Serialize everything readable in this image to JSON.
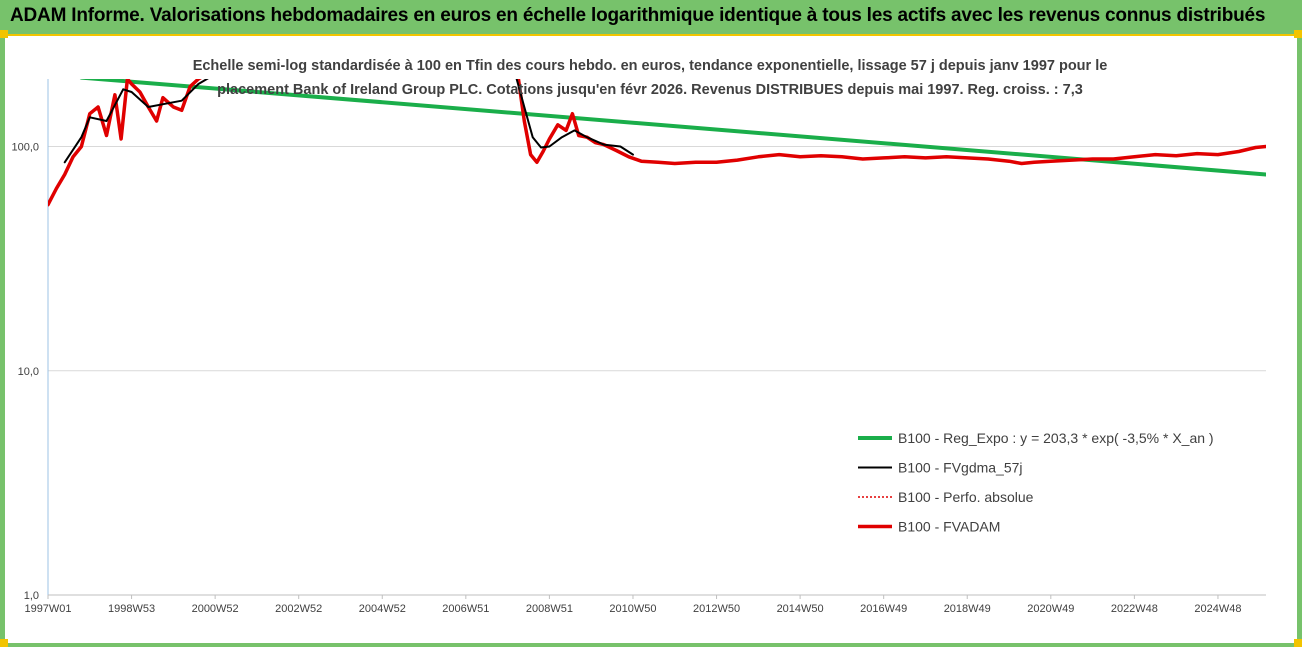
{
  "header": {
    "title": "ADAM Informe. Valorisations hebdomadaires en euros en échelle logarithmique identique à tous les actifs avec les revenus connus distribués"
  },
  "colors": {
    "banner": "#77c26b",
    "accent": "#f2c400",
    "reg_expo": "#1aae4a",
    "fvgdma": "#000000",
    "perfo": "#e00000",
    "fvadam": "#e00000"
  },
  "chart_data": {
    "type": "line",
    "subtitle_lines": [
      "Echelle semi-log standardisée à 100 en Tfin des cours hebdo. en euros, tendance exponentielle, lissage 57 j depuis janv 1997 pour le",
      "placement Bank of Ireland Group PLC. Cotations jusqu'en févr 2026. Revenus DISTRIBUES depuis mai 1997. Reg. croiss. : 7,3"
    ],
    "yscale": "log",
    "ylim": [
      1,
      200
    ],
    "xlim": [
      1997.0,
      2026.15
    ],
    "y_ticks": [
      {
        "value": 1,
        "label": "1,0"
      },
      {
        "value": 10,
        "label": "10,0"
      },
      {
        "value": 100,
        "label": "100,0"
      }
    ],
    "x_ticks": [
      {
        "value": 1997.0,
        "label": "1997W01"
      },
      {
        "value": 1999.0,
        "label": "1998W53"
      },
      {
        "value": 2001.0,
        "label": "2000W52"
      },
      {
        "value": 2003.0,
        "label": "2002W52"
      },
      {
        "value": 2005.0,
        "label": "2004W52"
      },
      {
        "value": 2007.0,
        "label": "2006W51"
      },
      {
        "value": 2009.0,
        "label": "2008W51"
      },
      {
        "value": 2011.0,
        "label": "2010W50"
      },
      {
        "value": 2013.0,
        "label": "2012W50"
      },
      {
        "value": 2015.0,
        "label": "2014W50"
      },
      {
        "value": 2017.0,
        "label": "2016W49"
      },
      {
        "value": 2019.0,
        "label": "2018W49"
      },
      {
        "value": 2021.0,
        "label": "2020W49"
      },
      {
        "value": 2023.0,
        "label": "2022W48"
      },
      {
        "value": 2025.0,
        "label": "2024W48"
      }
    ],
    "legend_position": "bottom-right",
    "series": [
      {
        "name": "B100 - Reg_Expo : y = 203,3 * exp( -3,5% *  X_an )",
        "key": "reg_expo",
        "style": "solid",
        "width": 4,
        "x": [
          1997.8,
          2026.15
        ],
        "y": [
          203,
          75
        ]
      },
      {
        "name": "B100 - FVgdma_57j",
        "key": "fvgdma",
        "style": "solid",
        "width": 2,
        "x": [
          1997.4,
          1997.8,
          1998.0,
          1998.4,
          1998.8,
          1999.0,
          1999.4,
          1999.8,
          2000.2,
          2000.6,
          2000.9,
          2008.2,
          2008.4,
          2008.6,
          2008.8,
          2009.0,
          2009.3,
          2009.6,
          2009.9,
          2010.3,
          2010.7,
          2011.0
        ],
        "y": [
          85,
          110,
          135,
          130,
          180,
          175,
          150,
          155,
          160,
          190,
          205,
          205,
          150,
          110,
          99,
          100,
          110,
          118,
          110,
          102,
          100,
          92
        ]
      },
      {
        "name": "B100 - Perfo. absolue",
        "key": "perfo",
        "style": "dotted",
        "width": 1.5,
        "x": [
          1997.0,
          1997.2,
          1997.4,
          1997.6,
          1997.8,
          1998.0,
          1998.2,
          1998.4,
          1998.6,
          1998.75,
          1998.9,
          1999.0,
          1999.2,
          1999.4,
          1999.6,
          1999.75,
          2000.0,
          2000.2,
          2000.4,
          2000.6,
          2000.8,
          2001.0,
          2008.25,
          2008.4,
          2008.55,
          2008.7,
          2008.85,
          2009.0,
          2009.2,
          2009.4,
          2009.55,
          2009.7,
          2009.9,
          2010.1,
          2010.3,
          2010.6,
          2010.9,
          2011.2,
          2011.6,
          2012.0,
          2012.5,
          2013.0,
          2013.5,
          2014.0,
          2014.5,
          2015.0,
          2015.5,
          2016.0,
          2016.5,
          2017.0,
          2017.5,
          2018.0,
          2018.5,
          2019.0,
          2019.5,
          2020.0,
          2020.3,
          2020.6,
          2021.0,
          2021.5,
          2022.0,
          2022.5,
          2023.0,
          2023.5,
          2024.0,
          2024.5,
          2025.0,
          2025.5,
          2025.9,
          2026.15
        ],
        "y": [
          55,
          65,
          75,
          90,
          100,
          140,
          150,
          112,
          170,
          108,
          200,
          190,
          175,
          150,
          130,
          165,
          150,
          145,
          185,
          200,
          210,
          205,
          205,
          130,
          92,
          85,
          95,
          108,
          125,
          118,
          140,
          112,
          110,
          104,
          102,
          96,
          90,
          86,
          85,
          84,
          85,
          85,
          87,
          90,
          92,
          90,
          91,
          90,
          88,
          89,
          90,
          89,
          90,
          89,
          88,
          86,
          84,
          85,
          86,
          87,
          88,
          88,
          90,
          92,
          91,
          93,
          92,
          95,
          99,
          100
        ]
      },
      {
        "name": "B100 - FVADAM",
        "key": "fvadam",
        "style": "solid",
        "width": 3.5,
        "x": [
          1997.0,
          1997.2,
          1997.4,
          1997.6,
          1997.8,
          1998.0,
          1998.2,
          1998.4,
          1998.6,
          1998.75,
          1998.9,
          1999.0,
          1999.2,
          1999.4,
          1999.6,
          1999.75,
          2000.0,
          2000.2,
          2000.4,
          2000.6,
          2000.8,
          2001.0,
          2008.25,
          2008.4,
          2008.55,
          2008.7,
          2008.85,
          2009.0,
          2009.2,
          2009.4,
          2009.55,
          2009.7,
          2009.9,
          2010.1,
          2010.3,
          2010.6,
          2010.9,
          2011.2,
          2011.6,
          2012.0,
          2012.5,
          2013.0,
          2013.5,
          2014.0,
          2014.5,
          2015.0,
          2015.5,
          2016.0,
          2016.5,
          2017.0,
          2017.5,
          2018.0,
          2018.5,
          2019.0,
          2019.5,
          2020.0,
          2020.3,
          2020.6,
          2021.0,
          2021.5,
          2022.0,
          2022.5,
          2023.0,
          2023.5,
          2024.0,
          2024.5,
          2025.0,
          2025.5,
          2025.9,
          2026.15
        ],
        "y": [
          55,
          65,
          75,
          90,
          100,
          140,
          150,
          112,
          170,
          108,
          200,
          190,
          175,
          150,
          130,
          165,
          150,
          145,
          185,
          200,
          210,
          205,
          205,
          130,
          92,
          85,
          95,
          108,
          125,
          118,
          140,
          112,
          110,
          104,
          102,
          96,
          90,
          86,
          85,
          84,
          85,
          85,
          87,
          90,
          92,
          90,
          91,
          90,
          88,
          89,
          90,
          89,
          90,
          89,
          88,
          86,
          84,
          85,
          86,
          87,
          88,
          88,
          90,
          92,
          91,
          93,
          92,
          95,
          99,
          100
        ]
      }
    ]
  }
}
